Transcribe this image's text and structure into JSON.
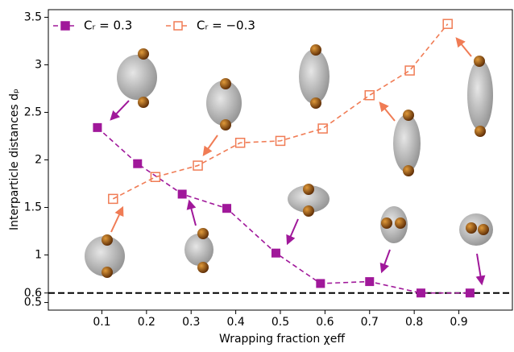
{
  "chart_data": {
    "type": "line",
    "xlabel": "Wrapping fraction χeff",
    "ylabel": "Interparticle distances dₚ",
    "series": [
      {
        "name": "Cᵣ = 0.3",
        "color": "#a0189a",
        "marker": "filled-square",
        "x": [
          0.09,
          0.18,
          0.28,
          0.38,
          0.49,
          0.59,
          0.7,
          0.815,
          0.925
        ],
        "values": [
          2.34,
          1.96,
          1.64,
          1.49,
          1.02,
          0.7,
          0.72,
          0.6,
          0.6
        ]
      },
      {
        "name": "Cᵣ = −0.3",
        "color": "#f07c55",
        "marker": "open-square",
        "x": [
          0.125,
          0.22,
          0.315,
          0.41,
          0.5,
          0.595,
          0.7,
          0.79,
          0.875
        ],
        "values": [
          1.59,
          1.82,
          1.94,
          2.18,
          2.2,
          2.33,
          2.68,
          2.94,
          3.43
        ]
      }
    ],
    "hline": 0.6,
    "xlim": [
      -0.02,
      1.02
    ],
    "ylim": [
      0.42,
      3.58
    ],
    "xticks": [
      0.1,
      0.2,
      0.3,
      0.4,
      0.5,
      0.6,
      0.7,
      0.8,
      0.9
    ],
    "yticks": [
      0.5,
      0.6,
      1.0,
      1.5,
      2.0,
      2.5,
      3.0,
      3.5
    ],
    "legend": "upper left"
  }
}
